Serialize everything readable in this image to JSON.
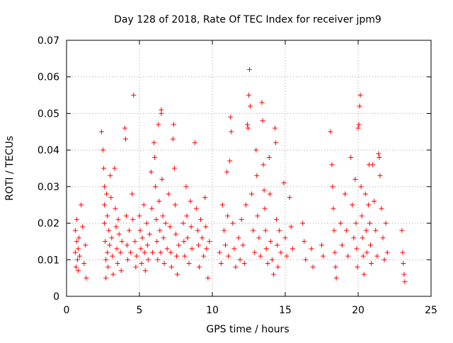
{
  "chart_data": {
    "type": "scatter",
    "title": "Day 128 of 2018, Rate Of TEC Index for receiver jpm9",
    "xlabel": "GPS time / hours",
    "ylabel": "ROTI / TECUs",
    "xlim": [
      0,
      25
    ],
    "ylim": [
      0,
      0.07
    ],
    "x_ticks": [
      0,
      5,
      10,
      15,
      20,
      25
    ],
    "x_tick_labels": [
      "0",
      "5",
      "10",
      "15",
      "20",
      "25"
    ],
    "y_ticks": [
      0,
      0.01,
      0.02,
      0.03,
      0.04,
      0.05,
      0.06,
      0.07
    ],
    "y_tick_labels": [
      "0",
      "0.01",
      "0.02",
      "0.03",
      "0.04",
      "0.05",
      "0.06",
      "0.07"
    ],
    "grid": true,
    "marker": "+",
    "color": "#ff0000",
    "series": [
      {
        "name": "ROTI",
        "points": [
          [
            0.6,
            0.012
          ],
          [
            0.6,
            0.018
          ],
          [
            0.65,
            0.008
          ],
          [
            0.7,
            0.015
          ],
          [
            0.7,
            0.021
          ],
          [
            0.75,
            0.01
          ],
          [
            0.8,
            0.013
          ],
          [
            0.8,
            0.007
          ],
          [
            0.85,
            0.016
          ],
          [
            0.9,
            0.011
          ],
          [
            1.0,
            0.025
          ],
          [
            1.1,
            0.019
          ],
          [
            1.2,
            0.009
          ],
          [
            1.3,
            0.014
          ],
          [
            1.35,
            0.005
          ],
          [
            2.4,
            0.045
          ],
          [
            2.5,
            0.04
          ],
          [
            2.55,
            0.035
          ],
          [
            2.6,
            0.03
          ],
          [
            2.6,
            0.025
          ],
          [
            2.6,
            0.02
          ],
          [
            2.65,
            0.015
          ],
          [
            2.7,
            0.01
          ],
          [
            2.7,
            0.005
          ],
          [
            2.75,
            0.028
          ],
          [
            2.8,
            0.022
          ],
          [
            2.8,
            0.012
          ],
          [
            2.85,
            0.008
          ],
          [
            2.9,
            0.018
          ],
          [
            2.95,
            0.014
          ],
          [
            3.0,
            0.033
          ],
          [
            3.05,
            0.027
          ],
          [
            3.1,
            0.016
          ],
          [
            3.15,
            0.011
          ],
          [
            3.2,
            0.006
          ],
          [
            3.3,
            0.035
          ],
          [
            3.35,
            0.024
          ],
          [
            3.4,
            0.019
          ],
          [
            3.45,
            0.013
          ],
          [
            3.5,
            0.009
          ],
          [
            3.55,
            0.021
          ],
          [
            3.6,
            0.017
          ],
          [
            3.7,
            0.012
          ],
          [
            3.75,
            0.007
          ],
          [
            3.8,
            0.015
          ],
          [
            4.0,
            0.046
          ],
          [
            4.05,
            0.043
          ],
          [
            4.1,
            0.022
          ],
          [
            4.15,
            0.014
          ],
          [
            4.2,
            0.01
          ],
          [
            4.3,
            0.018
          ],
          [
            4.4,
            0.012
          ],
          [
            4.5,
            0.028
          ],
          [
            4.55,
            0.021
          ],
          [
            4.6,
            0.055
          ],
          [
            4.7,
            0.015
          ],
          [
            4.75,
            0.008
          ],
          [
            4.8,
            0.011
          ],
          [
            5.0,
            0.022
          ],
          [
            5.05,
            0.018
          ],
          [
            5.1,
            0.013
          ],
          [
            5.15,
            0.009
          ],
          [
            5.2,
            0.016
          ],
          [
            5.3,
            0.025
          ],
          [
            5.35,
            0.012
          ],
          [
            5.4,
            0.007
          ],
          [
            5.5,
            0.02
          ],
          [
            5.55,
            0.014
          ],
          [
            5.6,
            0.01
          ],
          [
            5.7,
            0.017
          ],
          [
            5.8,
            0.034
          ],
          [
            5.85,
            0.024
          ],
          [
            5.9,
            0.012
          ],
          [
            6.0,
            0.042
          ],
          [
            6.05,
            0.038
          ],
          [
            6.1,
            0.03
          ],
          [
            6.15,
            0.021
          ],
          [
            6.2,
            0.015
          ],
          [
            6.25,
            0.01
          ],
          [
            6.3,
            0.047
          ],
          [
            6.35,
            0.026
          ],
          [
            6.4,
            0.018
          ],
          [
            6.45,
            0.012
          ],
          [
            6.5,
            0.051
          ],
          [
            6.5,
            0.05
          ],
          [
            6.55,
            0.032
          ],
          [
            6.6,
            0.022
          ],
          [
            6.65,
            0.016
          ],
          [
            6.7,
            0.009
          ],
          [
            6.8,
            0.02
          ],
          [
            6.9,
            0.013
          ],
          [
            7.0,
            0.028
          ],
          [
            7.1,
            0.019
          ],
          [
            7.15,
            0.012
          ],
          [
            7.2,
            0.008
          ],
          [
            7.3,
            0.043
          ],
          [
            7.35,
            0.047
          ],
          [
            7.4,
            0.035
          ],
          [
            7.45,
            0.025
          ],
          [
            7.5,
            0.017
          ],
          [
            7.55,
            0.011
          ],
          [
            7.6,
            0.006
          ],
          [
            7.7,
            0.014
          ],
          [
            8.0,
            0.02
          ],
          [
            8.05,
            0.015
          ],
          [
            8.1,
            0.011
          ],
          [
            8.2,
            0.03
          ],
          [
            8.25,
            0.022
          ],
          [
            8.3,
            0.016
          ],
          [
            8.4,
            0.009
          ],
          [
            8.5,
            0.026
          ],
          [
            8.55,
            0.019
          ],
          [
            8.6,
            0.013
          ],
          [
            8.8,
            0.042
          ],
          [
            8.9,
            0.024
          ],
          [
            9.0,
            0.018
          ],
          [
            9.05,
            0.014
          ],
          [
            9.1,
            0.008
          ],
          [
            9.2,
            0.021
          ],
          [
            9.3,
            0.016
          ],
          [
            9.4,
            0.011
          ],
          [
            9.5,
            0.027
          ],
          [
            9.55,
            0.019
          ],
          [
            9.6,
            0.013
          ],
          [
            9.7,
            0.005
          ],
          [
            9.8,
            0.015
          ],
          [
            10.5,
            0.012
          ],
          [
            10.6,
            0.009
          ],
          [
            10.7,
            0.025
          ],
          [
            10.8,
            0.018
          ],
          [
            10.9,
            0.014
          ],
          [
            11.0,
            0.034
          ],
          [
            11.05,
            0.022
          ],
          [
            11.1,
            0.011
          ],
          [
            11.2,
            0.037
          ],
          [
            11.25,
            0.049
          ],
          [
            11.3,
            0.045
          ],
          [
            11.4,
            0.02
          ],
          [
            11.5,
            0.013
          ],
          [
            11.6,
            0.008
          ],
          [
            11.8,
            0.016
          ],
          [
            11.9,
            0.01
          ],
          [
            12.0,
            0.021
          ],
          [
            12.1,
            0.014
          ],
          [
            12.2,
            0.009
          ],
          [
            12.3,
            0.025
          ],
          [
            12.4,
            0.047
          ],
          [
            12.45,
            0.046
          ],
          [
            12.5,
            0.055
          ],
          [
            12.55,
            0.062
          ],
          [
            12.6,
            0.052
          ],
          [
            12.7,
            0.028
          ],
          [
            12.8,
            0.018
          ],
          [
            12.9,
            0.012
          ],
          [
            13.0,
            0.04
          ],
          [
            13.05,
            0.033
          ],
          [
            13.1,
            0.022
          ],
          [
            13.2,
            0.016
          ],
          [
            13.3,
            0.011
          ],
          [
            13.4,
            0.053
          ],
          [
            13.45,
            0.048
          ],
          [
            13.5,
            0.036
          ],
          [
            13.55,
            0.029
          ],
          [
            13.6,
            0.024
          ],
          [
            13.65,
            0.018
          ],
          [
            13.7,
            0.013
          ],
          [
            13.8,
            0.009
          ],
          [
            13.9,
            0.038
          ],
          [
            13.95,
            0.028
          ],
          [
            14.0,
            0.015
          ],
          [
            14.1,
            0.01
          ],
          [
            14.2,
            0.006
          ],
          [
            14.3,
            0.046
          ],
          [
            14.35,
            0.042
          ],
          [
            14.4,
            0.021
          ],
          [
            14.45,
            0.014
          ],
          [
            14.5,
            0.008
          ],
          [
            14.6,
            0.018
          ],
          [
            14.7,
            0.012
          ],
          [
            14.9,
            0.031
          ],
          [
            15.0,
            0.016
          ],
          [
            15.1,
            0.011
          ],
          [
            15.3,
            0.027
          ],
          [
            15.4,
            0.019
          ],
          [
            15.5,
            0.013
          ],
          [
            16.2,
            0.02
          ],
          [
            16.3,
            0.015
          ],
          [
            16.4,
            0.01
          ],
          [
            16.8,
            0.013
          ],
          [
            16.9,
            0.008
          ],
          [
            17.5,
            0.014
          ],
          [
            17.6,
            0.011
          ],
          [
            18.1,
            0.045
          ],
          [
            18.2,
            0.036
          ],
          [
            18.25,
            0.03
          ],
          [
            18.3,
            0.024
          ],
          [
            18.35,
            0.018
          ],
          [
            18.4,
            0.012
          ],
          [
            18.45,
            0.008
          ],
          [
            18.5,
            0.005
          ],
          [
            18.8,
            0.02
          ],
          [
            18.9,
            0.014
          ],
          [
            19.1,
            0.028
          ],
          [
            19.2,
            0.018
          ],
          [
            19.3,
            0.011
          ],
          [
            19.5,
            0.038
          ],
          [
            19.6,
            0.025
          ],
          [
            19.7,
            0.016
          ],
          [
            19.8,
            0.032
          ],
          [
            19.85,
            0.02
          ],
          [
            19.9,
            0.013
          ],
          [
            19.95,
            0.008
          ],
          [
            20.0,
            0.046
          ],
          [
            20.05,
            0.047
          ],
          [
            20.1,
            0.052
          ],
          [
            20.15,
            0.055
          ],
          [
            20.2,
            0.03
          ],
          [
            20.25,
            0.022
          ],
          [
            20.3,
            0.016
          ],
          [
            20.35,
            0.011
          ],
          [
            20.4,
            0.006
          ],
          [
            20.5,
            0.028
          ],
          [
            20.55,
            0.018
          ],
          [
            20.6,
            0.012
          ],
          [
            20.7,
            0.025
          ],
          [
            20.75,
            0.036
          ],
          [
            20.8,
            0.02
          ],
          [
            20.85,
            0.014
          ],
          [
            20.9,
            0.009
          ],
          [
            21.0,
            0.036
          ],
          [
            21.1,
            0.026
          ],
          [
            21.2,
            0.018
          ],
          [
            21.3,
            0.011
          ],
          [
            21.4,
            0.039
          ],
          [
            21.45,
            0.038
          ],
          [
            21.5,
            0.033
          ],
          [
            21.6,
            0.024
          ],
          [
            21.7,
            0.016
          ],
          [
            21.8,
            0.01
          ],
          [
            21.9,
            0.02
          ],
          [
            22.0,
            0.012
          ],
          [
            23.0,
            0.018
          ],
          [
            23.05,
            0.012
          ],
          [
            23.1,
            0.009
          ],
          [
            23.15,
            0.006
          ],
          [
            23.2,
            0.004
          ]
        ]
      }
    ]
  }
}
